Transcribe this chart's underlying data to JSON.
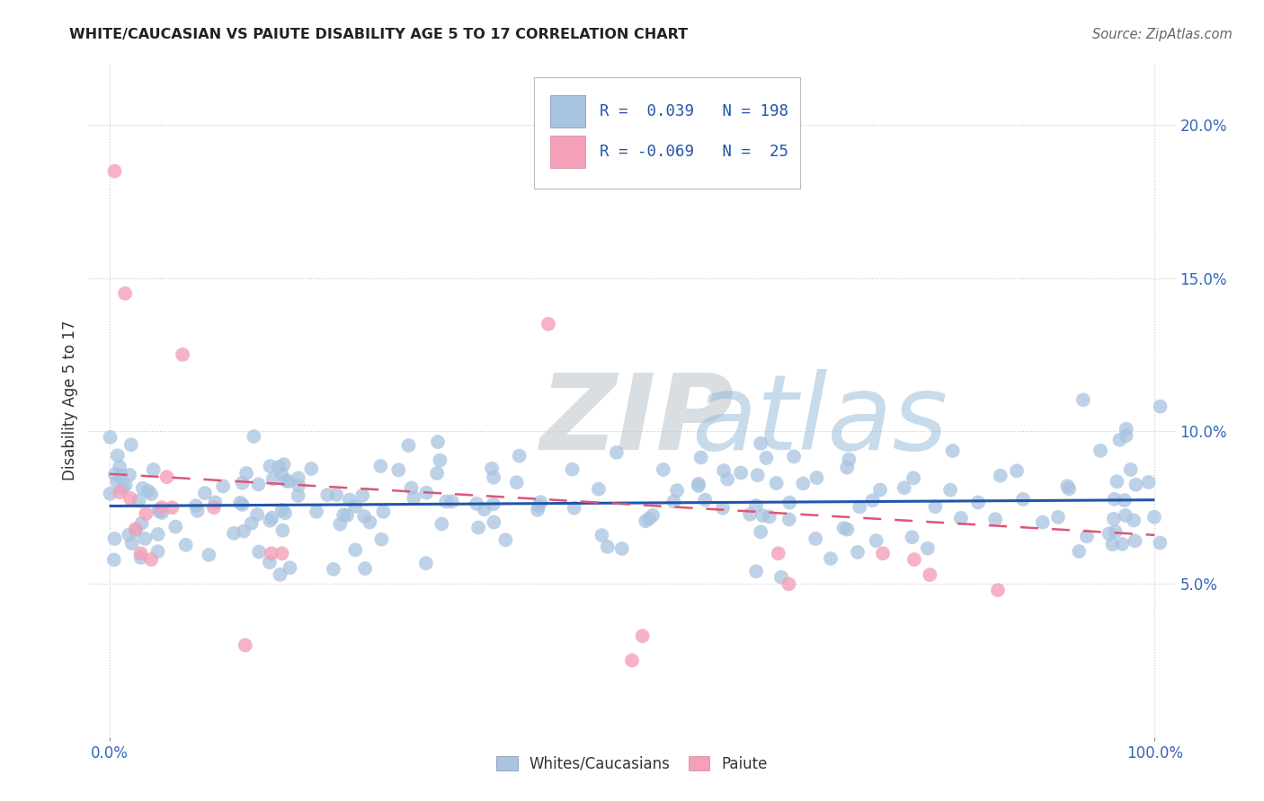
{
  "title": "WHITE/CAUCASIAN VS PAIUTE DISABILITY AGE 5 TO 17 CORRELATION CHART",
  "source": "Source: ZipAtlas.com",
  "ylabel": "Disability Age 5 to 17",
  "xlim": [
    -0.02,
    1.02
  ],
  "ylim": [
    0.0,
    0.22
  ],
  "xticks": [
    0.0,
    1.0
  ],
  "xticklabels": [
    "0.0%",
    "100.0%"
  ],
  "yticks": [
    0.05,
    0.1,
    0.15,
    0.2
  ],
  "yticklabels": [
    "5.0%",
    "10.0%",
    "15.0%",
    "20.0%"
  ],
  "blue_R": 0.039,
  "blue_N": 198,
  "pink_R": -0.069,
  "pink_N": 25,
  "blue_color": "#a8c4e0",
  "pink_color": "#f4a0b8",
  "blue_line_color": "#2255aa",
  "pink_line_color": "#dd5577",
  "legend_label_blue": "Whites/Caucasians",
  "legend_label_pink": "Paiute",
  "title_fontsize": 11.5,
  "tick_fontsize": 12,
  "ylabel_fontsize": 12,
  "marker_size": 130
}
